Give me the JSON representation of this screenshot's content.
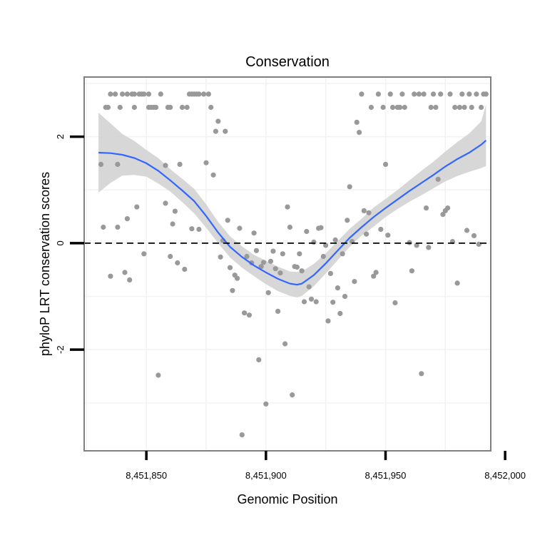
{
  "chart_data": {
    "type": "scatter",
    "title": "Conservation",
    "xlabel": "Genomic Position",
    "ylabel": "phyloP LRT conservation scores",
    "xlim": [
      8451824,
      8451994
    ],
    "ylim": [
      -3.9,
      3.12
    ],
    "x_ticks": [
      8451850,
      8451900,
      8451950,
      8452000
    ],
    "x_tick_labels": [
      "8,451,850",
      "8,451,900",
      "8,451,950",
      "8,452,000"
    ],
    "y_ticks": [
      -2,
      0,
      2
    ],
    "y_tick_labels": [
      "-2",
      "0",
      "2"
    ],
    "grid": true,
    "reference_line": {
      "y": 0,
      "style": "dashed"
    },
    "colors": {
      "points": "#999999",
      "smooth": "#3366ff",
      "ribbon": "#d3d3d3",
      "grid": "#f2f2f2",
      "panel_border": "#7f7f7f"
    },
    "series": [
      {
        "name": "scores",
        "points": [
          [
            8451831,
            1.48
          ],
          [
            8451832,
            0.3
          ],
          [
            8451833,
            2.55
          ],
          [
            8451834,
            2.55
          ],
          [
            8451835,
            2.8
          ],
          [
            8451835,
            -0.62
          ],
          [
            8451837,
            2.8
          ],
          [
            8451838,
            0.3
          ],
          [
            8451838,
            1.48
          ],
          [
            8451839,
            2.55
          ],
          [
            8451840,
            2.8
          ],
          [
            8451841,
            -0.55
          ],
          [
            8451842,
            0.46
          ],
          [
            8451842,
            2.8
          ],
          [
            8451843,
            -0.69
          ],
          [
            8451844,
            2.8
          ],
          [
            8451845,
            2.55
          ],
          [
            8451845,
            2.8
          ],
          [
            8451846,
            0.68
          ],
          [
            8451847,
            2.8
          ],
          [
            8451848,
            2.8
          ],
          [
            8451849,
            -0.2
          ],
          [
            8451849,
            2.8
          ],
          [
            8451851,
            2.55
          ],
          [
            8451851,
            2.8
          ],
          [
            8451852,
            2.55
          ],
          [
            8451853,
            2.55
          ],
          [
            8451854,
            2.55
          ],
          [
            8451855,
            -2.48
          ],
          [
            8451856,
            2.8
          ],
          [
            8451858,
            0.75
          ],
          [
            8451858,
            1.46
          ],
          [
            8451859,
            2.55
          ],
          [
            8451860,
            2.55
          ],
          [
            8451860,
            -0.25
          ],
          [
            8451861,
            0.36
          ],
          [
            8451862,
            0.6
          ],
          [
            8451863,
            -0.37
          ],
          [
            8451864,
            1.48
          ],
          [
            8451865,
            2.55
          ],
          [
            8451866,
            -0.49
          ],
          [
            8451867,
            2.55
          ],
          [
            8451868,
            2.8
          ],
          [
            8451869,
            2.8
          ],
          [
            8451869,
            0.27
          ],
          [
            8451870,
            2.8
          ],
          [
            8451871,
            2.8
          ],
          [
            8451872,
            2.8
          ],
          [
            8451872,
            0.26
          ],
          [
            8451874,
            2.8
          ],
          [
            8451875,
            1.51
          ],
          [
            8451876,
            2.8
          ],
          [
            8451877,
            2.55
          ],
          [
            8451878,
            1.28
          ],
          [
            8451879,
            2.1
          ],
          [
            8451880,
            2.29
          ],
          [
            8451881,
            -0.26
          ],
          [
            8451882,
            0.05
          ],
          [
            8451883,
            2.1
          ],
          [
            8451884,
            0.43
          ],
          [
            8451885,
            -0.46
          ],
          [
            8451886,
            -0.89
          ],
          [
            8451887,
            -0.6
          ],
          [
            8451888,
            -0.66
          ],
          [
            8451889,
            0.28
          ],
          [
            8451890,
            -3.6
          ],
          [
            8451891,
            -1.31
          ],
          [
            8451892,
            -0.25
          ],
          [
            8451893,
            -1.35
          ],
          [
            8451894,
            -0.37
          ],
          [
            8451895,
            0.19
          ],
          [
            8451896,
            -0.14
          ],
          [
            8451897,
            -2.19
          ],
          [
            8451898,
            -0.44
          ],
          [
            8451899,
            -0.36
          ],
          [
            8451900,
            -3.02
          ],
          [
            8451901,
            -0.93
          ],
          [
            8451902,
            -0.34
          ],
          [
            8451903,
            -0.15
          ],
          [
            8451904,
            -0.48
          ],
          [
            8451905,
            -1.28
          ],
          [
            8451906,
            -0.56
          ],
          [
            8451907,
            -0.2
          ],
          [
            8451908,
            -1.89
          ],
          [
            8451909,
            0.68
          ],
          [
            8451910,
            0.3
          ],
          [
            8451911,
            -2.85
          ],
          [
            8451912,
            -0.44
          ],
          [
            8451913,
            -0.45
          ],
          [
            8451914,
            -0.2
          ],
          [
            8451915,
            -0.52
          ],
          [
            8451916,
            -1.1
          ],
          [
            8451917,
            0.22
          ],
          [
            8451918,
            -0.82
          ],
          [
            8451919,
            -1.05
          ],
          [
            8451920,
            0.02
          ],
          [
            8451921,
            -1.1
          ],
          [
            8451922,
            0.28
          ],
          [
            8451923,
            0.29
          ],
          [
            8451924,
            -0.25
          ],
          [
            8451925,
            -0.04
          ],
          [
            8451926,
            -1.46
          ],
          [
            8451927,
            -0.57
          ],
          [
            8451928,
            -1.11
          ],
          [
            8451929,
            0.06
          ],
          [
            8451930,
            -0.84
          ],
          [
            8451931,
            -1.32
          ],
          [
            8451932,
            -0.2
          ],
          [
            8451933,
            -1.0
          ],
          [
            8451934,
            0.43
          ],
          [
            8451935,
            1.06
          ],
          [
            8451936,
            0.03
          ],
          [
            8451937,
            -0.72
          ],
          [
            8451938,
            2.27
          ],
          [
            8451939,
            2.08
          ],
          [
            8451940,
            2.8
          ],
          [
            8451941,
            0.61
          ],
          [
            8451942,
            0.17
          ],
          [
            8451943,
            0.57
          ],
          [
            8451944,
            2.55
          ],
          [
            8451945,
            -0.62
          ],
          [
            8451946,
            -0.55
          ],
          [
            8451947,
            2.8
          ],
          [
            8451948,
            0.26
          ],
          [
            8451949,
            2.55
          ],
          [
            8451950,
            1.48
          ],
          [
            8451951,
            0.15
          ],
          [
            8451952,
            2.8
          ],
          [
            8451953,
            2.55
          ],
          [
            8451954,
            -1.12
          ],
          [
            8451955,
            2.55
          ],
          [
            8451956,
            2.55
          ],
          [
            8451957,
            2.8
          ],
          [
            8451958,
            2.55
          ],
          [
            8451960,
            0.01
          ],
          [
            8451961,
            -0.52
          ],
          [
            8451962,
            2.8
          ],
          [
            8451963,
            -0.04
          ],
          [
            8451964,
            2.8
          ],
          [
            8451965,
            -2.45
          ],
          [
            8451966,
            2.8
          ],
          [
            8451967,
            0.66
          ],
          [
            8451968,
            -0.08
          ],
          [
            8451969,
            2.55
          ],
          [
            8451970,
            2.8
          ],
          [
            8451971,
            2.55
          ],
          [
            8451972,
            1.2
          ],
          [
            8451973,
            2.8
          ],
          [
            8451974,
            0.54
          ],
          [
            8451975,
            0.61
          ],
          [
            8451976,
            0.66
          ],
          [
            8451977,
            2.8
          ],
          [
            8451978,
            0.03
          ],
          [
            8451979,
            2.55
          ],
          [
            8451980,
            -0.75
          ],
          [
            8451981,
            2.55
          ],
          [
            8451982,
            2.8
          ],
          [
            8451983,
            2.55
          ],
          [
            8451984,
            0.24
          ],
          [
            8451985,
            2.8
          ],
          [
            8451986,
            2.55
          ],
          [
            8451987,
            0.14
          ],
          [
            8451988,
            2.8
          ],
          [
            8451989,
            -0.02
          ],
          [
            8451990,
            2.55
          ],
          [
            8451991,
            2.8
          ],
          [
            8451992,
            2.8
          ]
        ]
      }
    ],
    "smooth": {
      "x": [
        8451830,
        8451835,
        8451840,
        8451845,
        8451850,
        8451855,
        8451860,
        8451865,
        8451870,
        8451875,
        8451880,
        8451885,
        8451890,
        8451895,
        8451900,
        8451905,
        8451910,
        8451913,
        8451915,
        8451920,
        8451925,
        8451930,
        8451935,
        8451940,
        8451945,
        8451950,
        8451955,
        8451960,
        8451965,
        8451970,
        8451975,
        8451980,
        8451985,
        8451990,
        8451992
      ],
      "y": [
        1.7,
        1.69,
        1.66,
        1.6,
        1.5,
        1.36,
        1.18,
        0.99,
        0.79,
        0.51,
        0.2,
        -0.07,
        -0.26,
        -0.42,
        -0.55,
        -0.67,
        -0.76,
        -0.78,
        -0.76,
        -0.6,
        -0.38,
        -0.14,
        0.1,
        0.3,
        0.49,
        0.66,
        0.82,
        0.98,
        1.13,
        1.28,
        1.44,
        1.58,
        1.7,
        1.85,
        1.93
      ],
      "lower": [
        0.95,
        1.13,
        1.27,
        1.28,
        1.25,
        1.12,
        0.97,
        0.77,
        0.56,
        0.29,
        0.0,
        -0.27,
        -0.46,
        -0.62,
        -0.77,
        -0.9,
        -0.99,
        -1.02,
        -0.99,
        -0.81,
        -0.57,
        -0.32,
        -0.07,
        0.14,
        0.31,
        0.49,
        0.64,
        0.78,
        0.9,
        1.03,
        1.16,
        1.26,
        1.34,
        1.41,
        1.45
      ],
      "upper": [
        2.45,
        2.25,
        2.05,
        1.92,
        1.75,
        1.6,
        1.39,
        1.21,
        1.02,
        0.73,
        0.4,
        0.13,
        -0.06,
        -0.22,
        -0.33,
        -0.44,
        -0.53,
        -0.54,
        -0.53,
        -0.39,
        -0.19,
        0.04,
        0.27,
        0.46,
        0.67,
        0.83,
        1.0,
        1.18,
        1.36,
        1.53,
        1.72,
        1.9,
        2.06,
        2.29,
        2.6
      ]
    }
  }
}
